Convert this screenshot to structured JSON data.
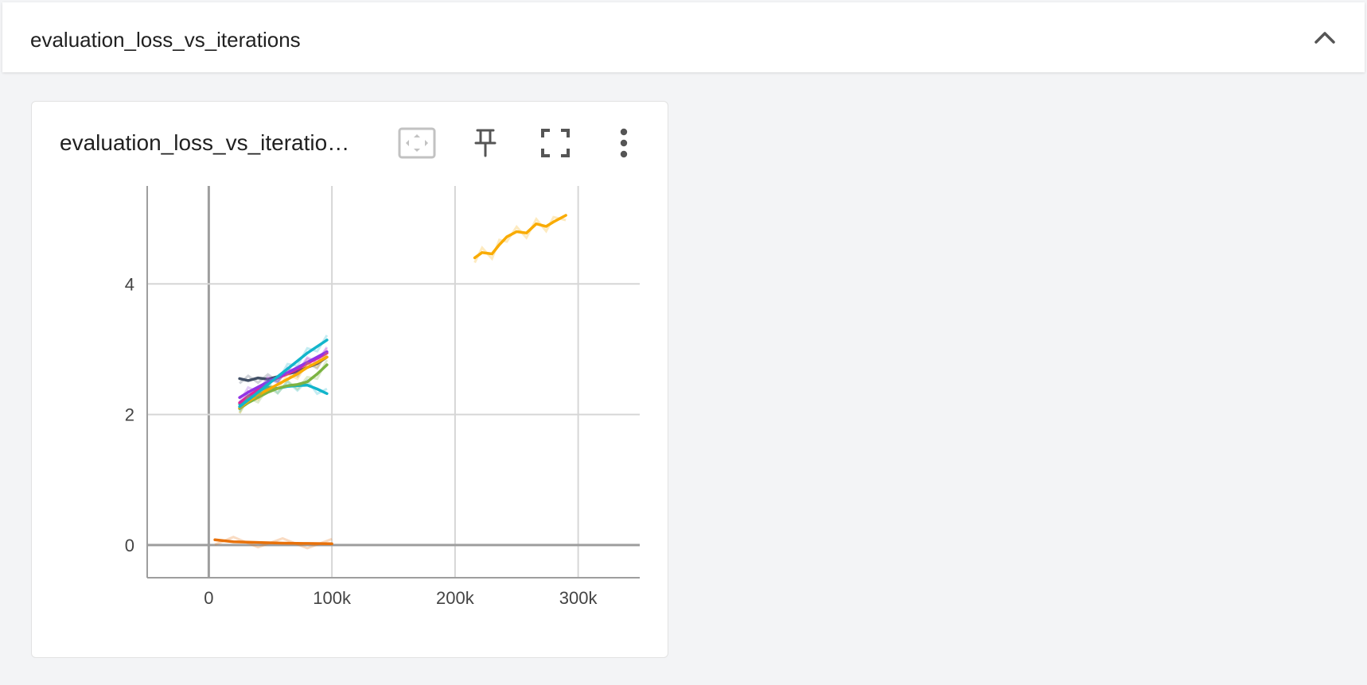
{
  "header": {
    "group_title": "evaluation_loss_vs_iterations",
    "collapse_icon": "chevron-up-icon"
  },
  "card": {
    "title": "evaluation_loss_vs_iteratio…",
    "tools": [
      {
        "name": "fit-domain-icon"
      },
      {
        "name": "pin-icon"
      },
      {
        "name": "fullscreen-icon"
      },
      {
        "name": "more-vert-icon"
      }
    ]
  },
  "chart_data": {
    "type": "line",
    "title": "",
    "xlabel": "",
    "ylabel": "",
    "xlim": [
      -50000,
      350000
    ],
    "ylim": [
      -0.5,
      5.5
    ],
    "x_ticks": [
      0,
      100000,
      200000,
      300000
    ],
    "x_tick_labels": [
      "0",
      "100k",
      "200k",
      "300k"
    ],
    "y_ticks": [
      0,
      2,
      4
    ],
    "y_tick_labels": [
      "0",
      "2",
      "4"
    ],
    "grid": true,
    "legend": "none",
    "series": [
      {
        "color": "#425066",
        "x": [
          25000,
          32000,
          40000,
          48000,
          56000,
          64000,
          72000,
          80000,
          88000,
          96000
        ],
        "y": [
          2.55,
          2.52,
          2.56,
          2.54,
          2.58,
          2.62,
          2.66,
          2.72,
          2.78,
          2.88
        ]
      },
      {
        "color": "#12b5cb",
        "x": [
          25000,
          32000,
          40000,
          48000,
          56000,
          64000,
          72000,
          80000,
          88000,
          96000
        ],
        "y": [
          2.16,
          2.26,
          2.36,
          2.42,
          2.4,
          2.43,
          2.44,
          2.45,
          2.39,
          2.32
        ]
      },
      {
        "color": "#e52592",
        "x": [
          25000,
          32000,
          40000,
          48000,
          56000,
          64000,
          72000,
          80000,
          88000,
          96000
        ],
        "y": [
          2.18,
          2.28,
          2.38,
          2.48,
          2.56,
          2.62,
          2.7,
          2.78,
          2.86,
          2.94
        ]
      },
      {
        "color": "#9334e6",
        "x": [
          25000,
          32000,
          40000,
          48000,
          56000,
          64000,
          72000,
          80000,
          88000,
          96000
        ],
        "y": [
          2.26,
          2.34,
          2.42,
          2.5,
          2.57,
          2.64,
          2.72,
          2.8,
          2.88,
          2.96
        ]
      },
      {
        "color": "#7cb342",
        "x": [
          25000,
          32000,
          40000,
          48000,
          56000,
          64000,
          72000,
          80000,
          88000,
          96000
        ],
        "y": [
          2.09,
          2.18,
          2.26,
          2.34,
          2.4,
          2.44,
          2.46,
          2.5,
          2.62,
          2.76
        ]
      },
      {
        "color": "#f9ab00",
        "x": [
          25000,
          32000,
          40000,
          48000,
          56000,
          64000,
          72000,
          80000,
          88000,
          96000
        ],
        "y": [
          2.1,
          2.2,
          2.3,
          2.38,
          2.46,
          2.54,
          2.62,
          2.72,
          2.8,
          2.88
        ]
      },
      {
        "color": "#12b5cb",
        "x": [
          25000,
          32000,
          40000,
          48000,
          56000,
          64000,
          72000,
          80000,
          88000,
          96000
        ],
        "y": [
          2.12,
          2.22,
          2.34,
          2.46,
          2.58,
          2.7,
          2.82,
          2.94,
          3.04,
          3.14
        ]
      },
      {
        "color": "#e8710a",
        "x": [
          5000,
          20000,
          40000,
          60000,
          80000,
          100000
        ],
        "y": [
          0.08,
          0.05,
          0.04,
          0.03,
          0.025,
          0.02
        ]
      },
      {
        "color": "#f9ab00",
        "x": [
          216000,
          222000,
          230000,
          236000,
          242000,
          250000,
          258000,
          266000,
          274000,
          280000,
          290000
        ],
        "y": [
          4.4,
          4.48,
          4.46,
          4.6,
          4.72,
          4.8,
          4.78,
          4.92,
          4.88,
          4.95,
          5.05
        ]
      }
    ]
  }
}
